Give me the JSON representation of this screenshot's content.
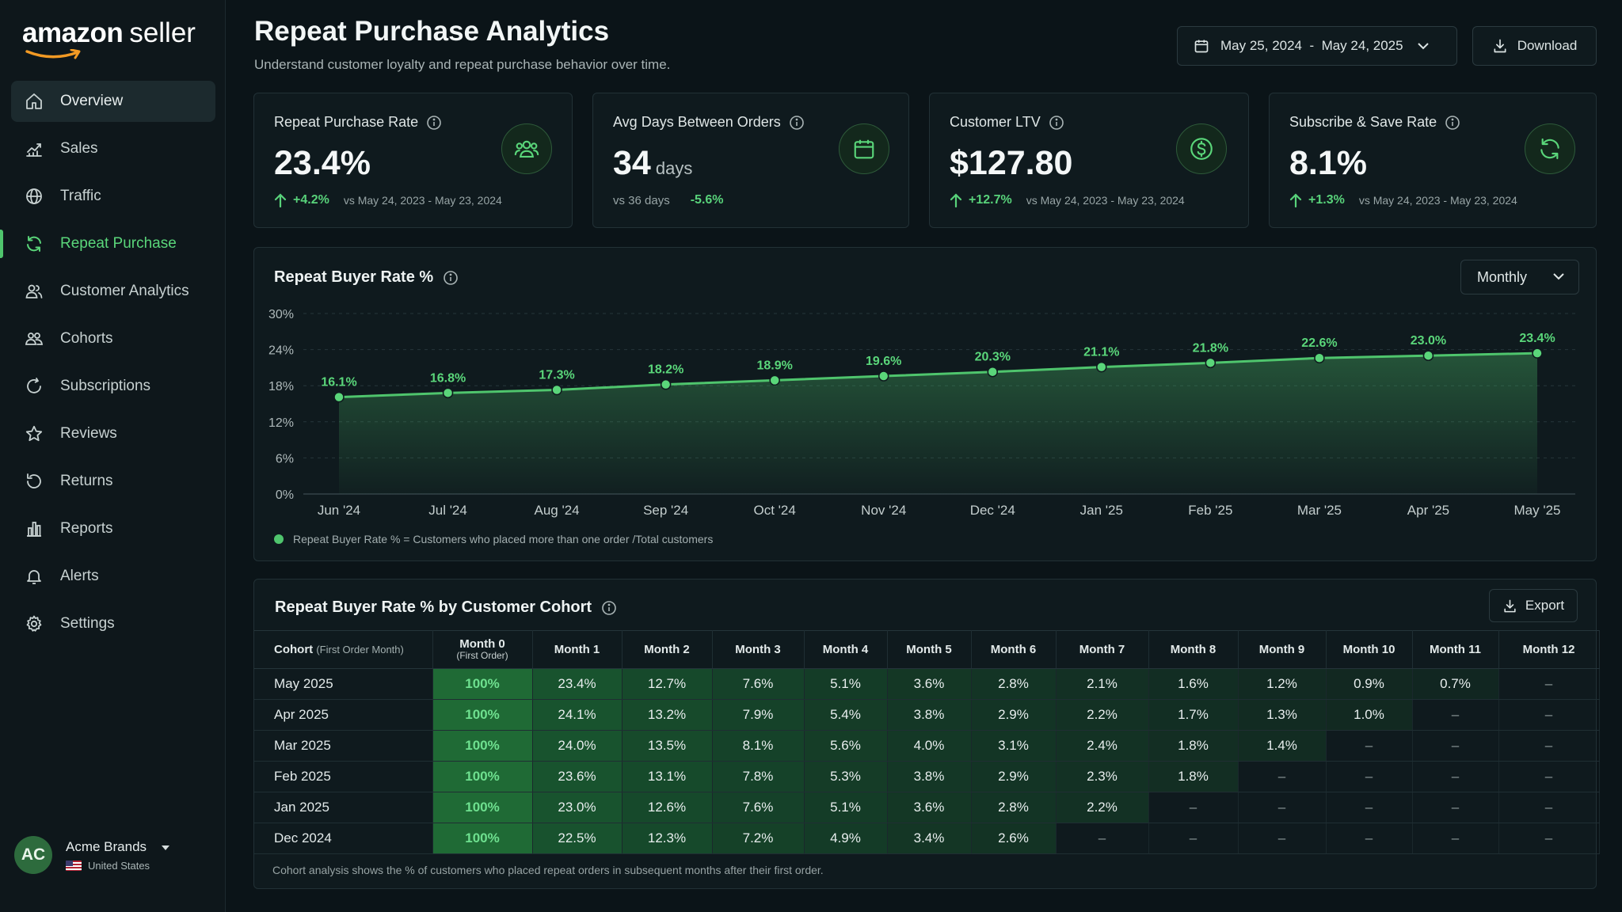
{
  "brand": {
    "word1": "amazon",
    "word2": "seller"
  },
  "colors": {
    "accent": "#4fc56d",
    "background": "#0b1418",
    "card": "#0f1a1e"
  },
  "nav": [
    {
      "label": "Overview",
      "icon": "home-icon",
      "state": "hover"
    },
    {
      "label": "Sales",
      "icon": "chart-line-icon"
    },
    {
      "label": "Traffic",
      "icon": "globe-icon"
    },
    {
      "label": "Repeat Purchase",
      "icon": "refresh-icon",
      "state": "active"
    },
    {
      "label": "Customer Analytics",
      "icon": "users-icon"
    },
    {
      "label": "Cohorts",
      "icon": "users-group-icon"
    },
    {
      "label": "Subscriptions",
      "icon": "cycle-icon"
    },
    {
      "label": "Reviews",
      "icon": "star-icon"
    },
    {
      "label": "Returns",
      "icon": "return-icon"
    },
    {
      "label": "Reports",
      "icon": "bar-chart-icon"
    },
    {
      "label": "Alerts",
      "icon": "bell-icon"
    },
    {
      "label": "Settings",
      "icon": "gear-icon"
    }
  ],
  "account": {
    "initials": "AC",
    "name": "Acme Brands",
    "region": "United States"
  },
  "header": {
    "title": "Repeat Purchase Analytics",
    "subtitle": "Understand customer loyalty and repeat purchase behavior over time.",
    "date_range": "May 25, 2024  -  May 24, 2025",
    "download_label": "Download"
  },
  "kpis": [
    {
      "label": "Repeat Purchase Rate",
      "value": "23.4%",
      "delta": "+4.2%",
      "compare": "vs May 24, 2023 - May 23, 2024",
      "icon": "users-icon"
    },
    {
      "label": "Avg Days Between Orders",
      "value": "34",
      "unit": "days",
      "compare": "vs 36 days",
      "delta": "-5.6%",
      "icon": "calendar-icon"
    },
    {
      "label": "Customer LTV",
      "value": "$127.80",
      "delta": "+12.7%",
      "compare": "vs May 24, 2023 - May 23, 2024",
      "icon": "dollar-icon"
    },
    {
      "label": "Subscribe & Save Rate",
      "value": "8.1%",
      "delta": "+1.3%",
      "compare": "vs May 24, 2023 - May 23, 2024",
      "icon": "refresh-icon"
    }
  ],
  "chart_card": {
    "title": "Repeat Buyer Rate %",
    "period": "Monthly"
  },
  "chart_data": {
    "type": "area",
    "title": "Repeat Buyer Rate %",
    "categories": [
      "Jun '24",
      "Jul '24",
      "Aug '24",
      "Sep '24",
      "Oct '24",
      "Nov '24",
      "Dec '24",
      "Jan '25",
      "Feb '25",
      "Mar '25",
      "Apr '25",
      "May '25"
    ],
    "values": [
      16.1,
      16.8,
      17.3,
      18.2,
      18.9,
      19.6,
      20.3,
      21.1,
      21.8,
      22.6,
      23.0,
      23.4
    ],
    "data_labels": [
      "16.1%",
      "16.8%",
      "17.3%",
      "18.2%",
      "18.9%",
      "19.6%",
      "20.3%",
      "21.1%",
      "21.8%",
      "22.6%",
      "23.0%",
      "23.4%"
    ],
    "yticks": [
      "30%",
      "24%",
      "18%",
      "12%",
      "6%",
      "0%"
    ],
    "ylim": [
      0,
      30
    ],
    "grid": true,
    "legend": "Repeat Buyer Rate % = Customers who placed more than one order /Total customers",
    "color": "#4fc56d"
  },
  "cohort": {
    "title": "Repeat Buyer Rate % by Customer Cohort",
    "export_label": "Export",
    "header_first": "Cohort",
    "header_first_sub": "(First Order Month)",
    "month0": "Month 0",
    "month0_sub": "(First Order)",
    "columns": [
      "Month 1",
      "Month 2",
      "Month 3",
      "Month 4",
      "Month 5",
      "Month 6",
      "Month 7",
      "Month 8",
      "Month 9",
      "Month 10",
      "Month 11",
      "Month 12"
    ],
    "rows": [
      {
        "cohort": "May 2025",
        "cells": [
          "100%",
          "23.4%",
          "12.7%",
          "7.6%",
          "5.1%",
          "3.6%",
          "2.8%",
          "2.1%",
          "1.6%",
          "1.2%",
          "0.9%",
          "0.7%",
          "–"
        ]
      },
      {
        "cohort": "Apr 2025",
        "cells": [
          "100%",
          "24.1%",
          "13.2%",
          "7.9%",
          "5.4%",
          "3.8%",
          "2.9%",
          "2.2%",
          "1.7%",
          "1.3%",
          "1.0%",
          "–",
          "–"
        ]
      },
      {
        "cohort": "Mar 2025",
        "cells": [
          "100%",
          "24.0%",
          "13.5%",
          "8.1%",
          "5.6%",
          "4.0%",
          "3.1%",
          "2.4%",
          "1.8%",
          "1.4%",
          "–",
          "–",
          "–"
        ]
      },
      {
        "cohort": "Feb 2025",
        "cells": [
          "100%",
          "23.6%",
          "13.1%",
          "7.8%",
          "5.3%",
          "3.8%",
          "2.9%",
          "2.3%",
          "1.8%",
          "–",
          "–",
          "–",
          "–"
        ]
      },
      {
        "cohort": "Jan 2025",
        "cells": [
          "100%",
          "23.0%",
          "12.6%",
          "7.6%",
          "5.1%",
          "3.6%",
          "2.8%",
          "2.2%",
          "–",
          "–",
          "–",
          "–",
          "–"
        ]
      },
      {
        "cohort": "Dec 2024",
        "cells": [
          "100%",
          "22.5%",
          "12.3%",
          "7.2%",
          "4.9%",
          "3.4%",
          "2.6%",
          "–",
          "–",
          "–",
          "–",
          "–",
          "–"
        ]
      }
    ],
    "note": "Cohort analysis shows the % of customers who placed repeat orders in subsequent months after their first order."
  }
}
